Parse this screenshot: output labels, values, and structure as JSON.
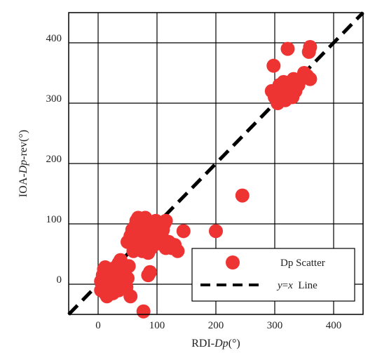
{
  "chart_data": {
    "type": "scatter",
    "xlabel": "RDI-Dp(°)",
    "xlabel_parts": [
      "RDI-",
      "Dp",
      "(°)"
    ],
    "ylabel": "IOA-Dp-rev(°)",
    "ylabel_parts": [
      "IOA-",
      "Dp",
      "-rev(°)"
    ],
    "xlim": [
      -50,
      450
    ],
    "ylim": [
      -50,
      450
    ],
    "xticks": [
      0,
      100,
      200,
      300,
      400
    ],
    "yticks": [
      0,
      100,
      200,
      300,
      400
    ],
    "grid": true,
    "legend_position": "bottom-right",
    "series": [
      {
        "name": "Dp Scatter",
        "kind": "scatter",
        "color": "#ee3333",
        "points": [
          [
            5,
            5
          ],
          [
            8,
            15
          ],
          [
            10,
            25
          ],
          [
            12,
            28
          ],
          [
            15,
            10
          ],
          [
            18,
            20
          ],
          [
            20,
            18
          ],
          [
            22,
            25
          ],
          [
            25,
            5
          ],
          [
            28,
            10
          ],
          [
            30,
            15
          ],
          [
            32,
            30
          ],
          [
            35,
            35
          ],
          [
            38,
            40
          ],
          [
            40,
            20
          ],
          [
            42,
            5
          ],
          [
            45,
            30
          ],
          [
            48,
            -5
          ],
          [
            50,
            10
          ],
          [
            52,
            30
          ],
          [
            8,
            -5
          ],
          [
            12,
            -15
          ],
          [
            15,
            -20
          ],
          [
            20,
            -10
          ],
          [
            25,
            -15
          ],
          [
            30,
            -5
          ],
          [
            35,
            -10
          ],
          [
            55,
            -20
          ],
          [
            5,
            -10
          ],
          [
            10,
            0
          ],
          [
            18,
            0
          ],
          [
            22,
            5
          ],
          [
            50,
            70
          ],
          [
            55,
            80
          ],
          [
            58,
            90
          ],
          [
            60,
            85
          ],
          [
            62,
            95
          ],
          [
            65,
            105
          ],
          [
            68,
            110
          ],
          [
            70,
            88
          ],
          [
            72,
            75
          ],
          [
            75,
            100
          ],
          [
            78,
            92
          ],
          [
            80,
            110
          ],
          [
            82,
            85
          ],
          [
            85,
            70
          ],
          [
            88,
            95
          ],
          [
            90,
            100
          ],
          [
            92,
            80
          ],
          [
            95,
            92
          ],
          [
            98,
            105
          ],
          [
            100,
            90
          ],
          [
            102,
            85
          ],
          [
            105,
            95
          ],
          [
            108,
            80
          ],
          [
            110,
            90
          ],
          [
            112,
            100
          ],
          [
            115,
            105
          ],
          [
            65,
            60
          ],
          [
            75,
            55
          ],
          [
            85,
            52
          ],
          [
            90,
            60
          ],
          [
            95,
            65
          ],
          [
            70,
            65
          ],
          [
            60,
            55
          ],
          [
            80,
            65
          ],
          [
            100,
            70
          ],
          [
            115,
            60
          ],
          [
            120,
            70
          ],
          [
            125,
            60
          ],
          [
            130,
            65
          ],
          [
            135,
            55
          ],
          [
            145,
            88
          ],
          [
            200,
            88
          ],
          [
            245,
            147
          ],
          [
            85,
            15
          ],
          [
            88,
            20
          ],
          [
            77,
            -45
          ],
          [
            295,
            320
          ],
          [
            300,
            310
          ],
          [
            305,
            300
          ],
          [
            308,
            330
          ],
          [
            310,
            315
          ],
          [
            312,
            325
          ],
          [
            315,
            335
          ],
          [
            318,
            305
          ],
          [
            320,
            320
          ],
          [
            322,
            315
          ],
          [
            325,
            330
          ],
          [
            328,
            325
          ],
          [
            330,
            310
          ],
          [
            332,
            340
          ],
          [
            335,
            320
          ],
          [
            338,
            335
          ],
          [
            340,
            330
          ],
          [
            345,
            340
          ],
          [
            350,
            350
          ],
          [
            355,
            345
          ],
          [
            360,
            340
          ],
          [
            358,
            385
          ],
          [
            360,
            393
          ],
          [
            322,
            390
          ],
          [
            298,
            362
          ]
        ]
      },
      {
        "name": "y=x Line",
        "name_parts": [
          "y",
          "=",
          "x",
          "  Line"
        ],
        "kind": "line",
        "dash": "dashed",
        "color": "#000000",
        "x": [
          -50,
          450
        ],
        "y": [
          -50,
          450
        ]
      }
    ]
  }
}
